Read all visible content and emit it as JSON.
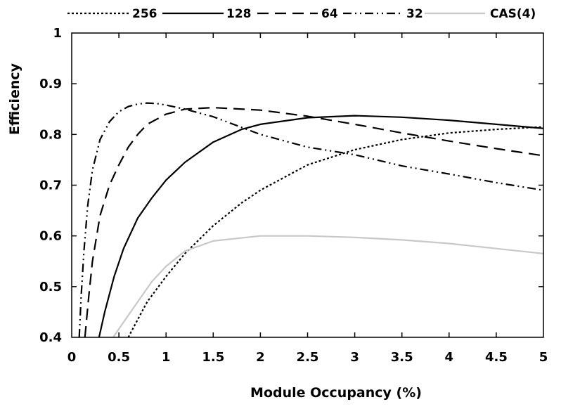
{
  "chart_data": {
    "type": "line",
    "title": "",
    "xlabel": "Module Occupancy (%)",
    "ylabel": "Efficiency",
    "xlim": [
      0,
      5
    ],
    "ylim": [
      0.4,
      1.0
    ],
    "xticks": [
      0,
      0.5,
      1,
      1.5,
      2,
      2.5,
      3,
      3.5,
      4,
      4.5,
      5
    ],
    "xtick_labels": [
      "0",
      "0.5",
      "1",
      "1.5",
      "2",
      "2.5",
      "3",
      "3.5",
      "4",
      "4.5",
      "5"
    ],
    "yticks": [
      0.4,
      0.5,
      0.6,
      0.7,
      0.8,
      0.9,
      1.0
    ],
    "ytick_labels": [
      "0.4",
      "0.5",
      "0.6",
      "0.7",
      "0.8",
      "0.9",
      "1"
    ],
    "grid": false,
    "legend_position": "top",
    "series": [
      {
        "name": "256",
        "style": "dotted",
        "color": "#000000",
        "x": [
          0.6,
          0.7,
          0.8,
          1.0,
          1.2,
          1.5,
          1.8,
          2.0,
          2.5,
          3.0,
          3.5,
          4.0,
          4.5,
          5.0
        ],
        "y": [
          0.4,
          0.435,
          0.47,
          0.52,
          0.565,
          0.62,
          0.665,
          0.69,
          0.74,
          0.77,
          0.79,
          0.803,
          0.81,
          0.815
        ]
      },
      {
        "name": "128",
        "style": "solid",
        "color": "#000000",
        "x": [
          0.29,
          0.35,
          0.45,
          0.55,
          0.7,
          0.85,
          1.0,
          1.2,
          1.5,
          1.8,
          2.0,
          2.5,
          3.0,
          3.5,
          4.0,
          4.5,
          5.0
        ],
        "y": [
          0.4,
          0.45,
          0.52,
          0.575,
          0.635,
          0.675,
          0.71,
          0.745,
          0.785,
          0.81,
          0.82,
          0.833,
          0.837,
          0.834,
          0.828,
          0.82,
          0.812
        ]
      },
      {
        "name": "64",
        "style": "dashed",
        "color": "#000000",
        "x": [
          0.14,
          0.18,
          0.22,
          0.3,
          0.4,
          0.5,
          0.6,
          0.7,
          0.8,
          1.0,
          1.2,
          1.5,
          2.0,
          2.5,
          3.0,
          3.5,
          4.0,
          4.5,
          5.0
        ],
        "y": [
          0.4,
          0.48,
          0.55,
          0.64,
          0.7,
          0.74,
          0.775,
          0.8,
          0.82,
          0.84,
          0.85,
          0.853,
          0.848,
          0.836,
          0.82,
          0.803,
          0.787,
          0.772,
          0.758
        ]
      },
      {
        "name": "32",
        "style": "dash-dot-dot",
        "color": "#000000",
        "x": [
          0.08,
          0.1,
          0.13,
          0.17,
          0.22,
          0.3,
          0.4,
          0.5,
          0.6,
          0.7,
          0.8,
          0.9,
          1.0,
          1.2,
          1.5,
          2.0,
          2.5,
          3.0,
          3.5,
          4.0,
          4.5,
          5.0
        ],
        "y": [
          0.4,
          0.48,
          0.57,
          0.66,
          0.73,
          0.79,
          0.825,
          0.845,
          0.855,
          0.86,
          0.862,
          0.861,
          0.858,
          0.85,
          0.835,
          0.8,
          0.775,
          0.76,
          0.738,
          0.722,
          0.705,
          0.69
        ]
      },
      {
        "name": "CAS(4)",
        "style": "solid",
        "color": "#c8c8c8",
        "x": [
          0.44,
          0.55,
          0.7,
          0.85,
          1.0,
          1.2,
          1.5,
          2.0,
          2.5,
          3.0,
          3.5,
          4.0,
          4.5,
          5.0
        ],
        "y": [
          0.4,
          0.43,
          0.47,
          0.51,
          0.54,
          0.57,
          0.59,
          0.6,
          0.6,
          0.597,
          0.592,
          0.585,
          0.575,
          0.565
        ]
      }
    ]
  }
}
